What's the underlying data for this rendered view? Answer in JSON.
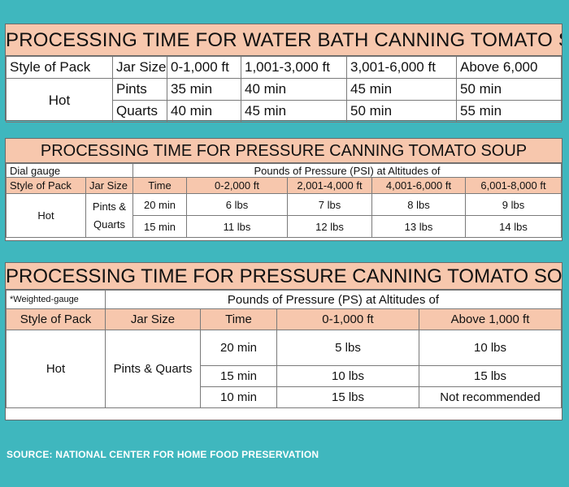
{
  "water_bath": {
    "title": "PROCESSING TIME FOR WATER BATH CANNING TOMATO SOUP",
    "headers": [
      "Style of Pack",
      "Jar Size",
      "0-1,000 ft",
      "1,001-3,000 ft",
      "3,001-6,000 ft",
      "Above 6,000"
    ],
    "style": "Hot",
    "rows": [
      {
        "jar": "Pints",
        "values": [
          "35 min",
          "40 min",
          "45 min",
          "50 min"
        ]
      },
      {
        "jar": "Quarts",
        "values": [
          "40 min",
          "45 min",
          "50 min",
          "55 min"
        ]
      }
    ]
  },
  "pressure_dial": {
    "title": "PROCESSING TIME FOR PRESSURE CANNING TOMATO SOUP",
    "gauge_label": "Dial gauge",
    "pressure_label": "Pounds of Pressure (PSI) at Altitudes of",
    "headers": [
      "Style of Pack",
      "Jar Size",
      "Time",
      "0-2,000 ft",
      "2,001-4,000 ft",
      "4,001-6,000 ft",
      "6,001-8,000 ft"
    ],
    "style": "Hot",
    "jar_line1": "Pints &",
    "jar_line2": "Quarts",
    "rows": [
      {
        "time": "20 min",
        "values": [
          "6 lbs",
          "7 lbs",
          "8 lbs",
          "9 lbs"
        ]
      },
      {
        "time": "15 min",
        "values": [
          "11 lbs",
          "12 lbs",
          "13 lbs",
          "14 lbs"
        ]
      }
    ]
  },
  "pressure_weighted": {
    "title": "PROCESSING TIME FOR PRESSURE CANNING TOMATO SOUP",
    "gauge_label": "*Weighted-gauge",
    "pressure_label": "Pounds of Pressure (PS) at Altitudes of",
    "headers": [
      "Style of Pack",
      "Jar Size",
      "Time",
      "0-1,000 ft",
      "Above 1,000 ft"
    ],
    "style": "Hot",
    "jar": "Pints & Quarts",
    "rows": [
      {
        "time": "20 min",
        "values": [
          "5 lbs",
          "10 lbs"
        ]
      },
      {
        "time": "15 min",
        "values": [
          "10 lbs",
          "15 lbs"
        ]
      },
      {
        "time": "10 min",
        "values": [
          "15 lbs",
          "Not recommended"
        ]
      }
    ]
  },
  "source": "SOURCE:  NATIONAL CENTER FOR HOME FOOD PRESERVATION",
  "colors": {
    "background": "#3fb7be",
    "header_fill": "#f7c7ad"
  }
}
